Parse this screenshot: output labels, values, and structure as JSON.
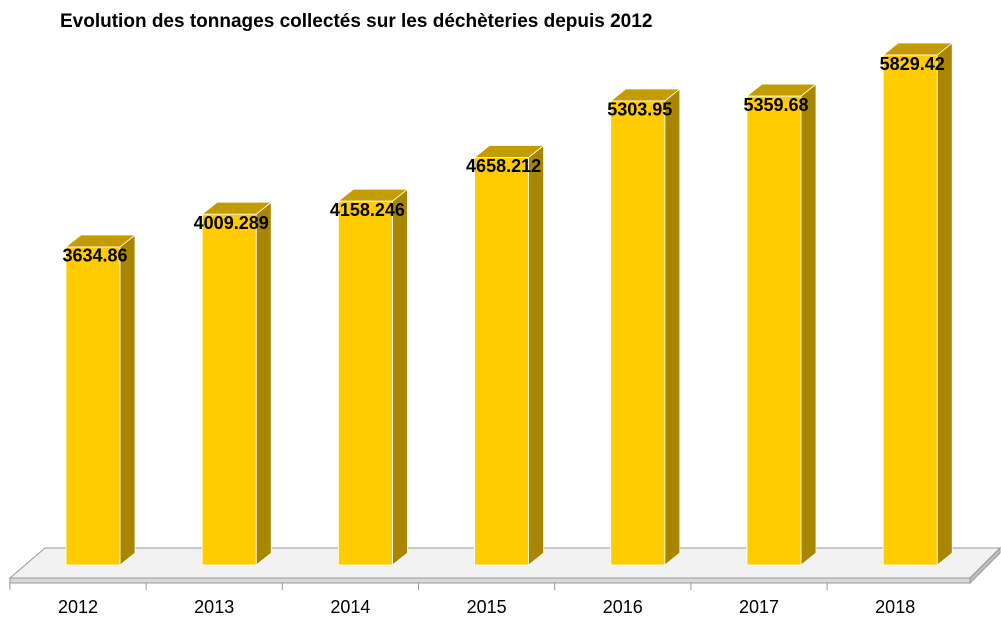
{
  "chart_data": {
    "type": "bar3d",
    "title": "Evolution des tonnages collectés sur les déchèteries depuis 2012",
    "categories": [
      "2012",
      "2013",
      "2014",
      "2015",
      "2016",
      "2017",
      "2018"
    ],
    "values": [
      3634.86,
      4009.289,
      4158.246,
      4658.212,
      5303.95,
      5359.68,
      5829.42
    ],
    "color": "#ffcc00"
  }
}
